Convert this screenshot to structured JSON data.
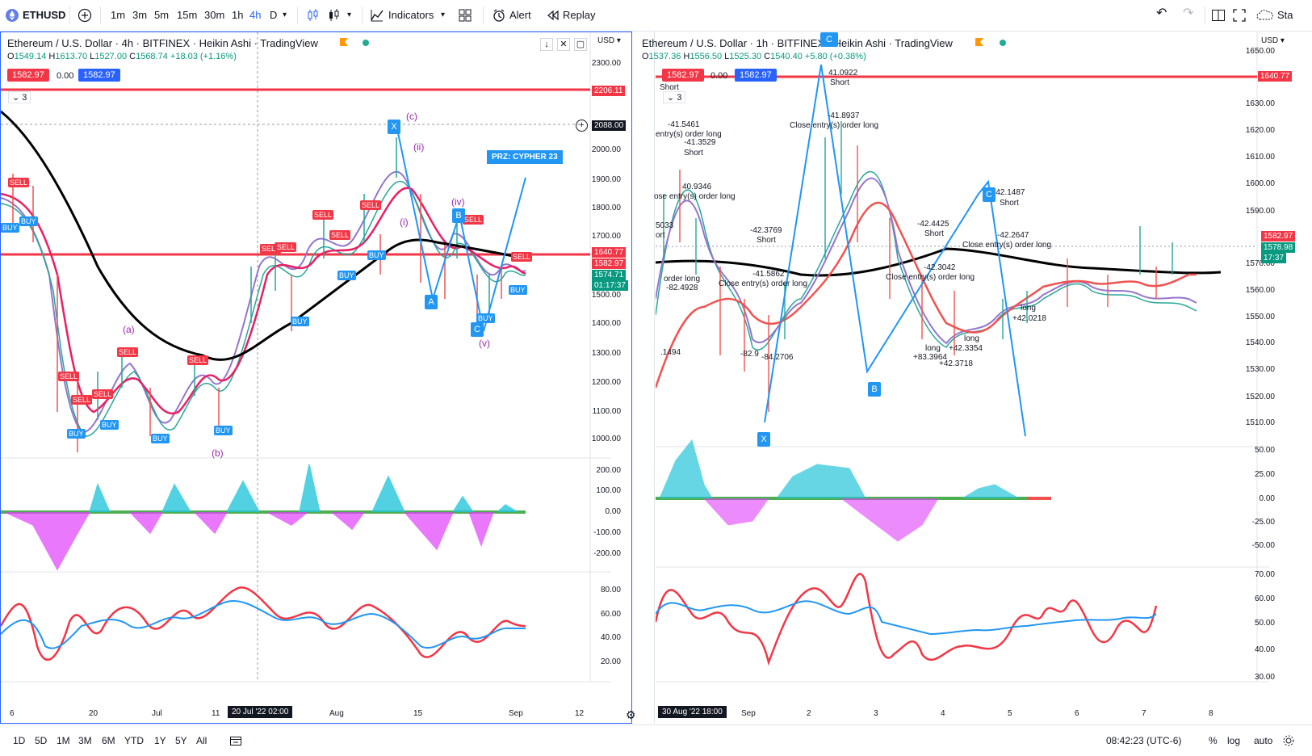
{
  "toolbar": {
    "symbol": "ETHUSD",
    "intervals": [
      "1m",
      "3m",
      "5m",
      "15m",
      "30m",
      "1h",
      "4h",
      "D"
    ],
    "active_interval": "4h",
    "indicators": "Indicators",
    "alert": "Alert",
    "replay": "Replay",
    "right_cut": "Sta"
  },
  "left": {
    "title": "Ethereum / U.S. Dollar · 4h · BITFINEX · Heikin Ashi · TradingView",
    "ohlc": {
      "o_k": "O",
      "o": "1549.14",
      "h_k": "H",
      "h": "1613.70",
      "l_k": "L",
      "l": "1527.00",
      "c_k": "C",
      "c": "1568.74",
      "chg": "+18.03 (+1.16%)"
    },
    "bid": "1582.97",
    "spread": "0.00",
    "ask": "1582.97",
    "collapse": "3",
    "currency": "USD",
    "price_labels": [
      "2300.00",
      "2200.00",
      "2100.00",
      "2000.00",
      "1900.00",
      "1800.00",
      "1700.00",
      "1600.00",
      "1500.00",
      "1400.00",
      "1300.00",
      "1200.00",
      "1100.00",
      "1000.00"
    ],
    "tags": {
      "red_line": "2206.11",
      "crosshair": "2088.00",
      "level": "1640.77",
      "last": "1582.97",
      "cur": "1574.71",
      "timer": "01:17:37"
    },
    "osc1_labels": [
      "200.00",
      "100.00",
      "0.00",
      "-100.00",
      "-200.00"
    ],
    "osc2_labels": [
      "80.00",
      "60.00",
      "40.00",
      "20.00"
    ],
    "x_labels": [
      "6",
      "20",
      "Jul",
      "11",
      "Aug",
      "15",
      "Sep",
      "12"
    ],
    "x_tag": "20 Jul '22   02:00",
    "waves": [
      "(a)",
      "(b)",
      "(c)",
      "(i)",
      "(ii)",
      "(iv)",
      "(v)"
    ],
    "prz": "PRZ: CYPHER 23",
    "signals": {
      "buy": "BUY",
      "sell": "SELL"
    },
    "points": [
      "B",
      "A",
      "C",
      "X"
    ]
  },
  "right": {
    "title": "Ethereum / U.S. Dollar · 1h · BITFINEX · Heikin Ashi · TradingView",
    "ohlc": {
      "o_k": "O",
      "o": "1537.36",
      "h_k": "H",
      "h": "1556.50",
      "l_k": "L",
      "l": "1525.30",
      "c_k": "C",
      "c": "1540.40",
      "chg": "+5.80 (+0.38%)"
    },
    "bid": "1582.97",
    "spread": "0.00",
    "ask": "1582.97",
    "collapse": "3",
    "currency": "USD",
    "price_labels": [
      "1650.00",
      "1630.00",
      "1620.00",
      "1610.00",
      "1600.00",
      "1590.00",
      "1570.00",
      "1560.00",
      "1550.00",
      "1540.00",
      "1530.00",
      "1520.00",
      "1510.00"
    ],
    "tags": {
      "level": "1640.77",
      "last": "1582.97",
      "cur": "1578.98",
      "timer": "17:37"
    },
    "osc1_labels": [
      "50.00",
      "25.00",
      "0.00",
      "-25.00",
      "-50.00"
    ],
    "osc2_labels": [
      "70.00",
      "60.00",
      "50.00",
      "40.00",
      "30.00"
    ],
    "x_labels": [
      "Sep",
      "2",
      "3",
      "4",
      "5",
      "6",
      "7",
      "8"
    ],
    "x_tag": "30 Aug '22   18:00",
    "annotations": {
      "a1": "41.0922",
      "a2": "Short",
      "a3": "-41.5461",
      "a4": "entry(s) order long",
      "a5": "-41.3529",
      "a6": "Short",
      "a7": "40.9346",
      "a8": "ose entry(s) order long",
      "a9": "-41.8937",
      "a10": "Close entry(s) order long",
      "a11": "-42.3769",
      "a12": "Short",
      "a13": "-42.4425",
      "a14": "Short",
      "a15": "-42.1487",
      "a16": "Short",
      "a17": "-42.2647",
      "a18": "Close entry(s) order long",
      "a19": "-42.3042",
      "a20": "Close entry(s) order long",
      "a21": "-41.5862",
      "a22": "Close entry(s) order long",
      "a23": "order long",
      "a24": "-82.4928",
      "a25": "long",
      "a26": "+42.0218",
      "a27": "long",
      "a28": "+42.3354",
      "a29": "+83.3964",
      "a30": "+42.3718",
      "a31": "long",
      "a32": ".1494",
      "a33": "-82.9",
      "a34": "-84.2706",
      "a35": "5033",
      "a36": "ort",
      "a37": "Short"
    },
    "points": [
      "X",
      "B",
      "C",
      "C"
    ]
  },
  "bottom": {
    "ranges": [
      "1D",
      "5D",
      "1M",
      "3M",
      "6M",
      "YTD",
      "1Y",
      "5Y",
      "All"
    ],
    "clock": "08:42:23 (UTC-6)",
    "pct": "%",
    "log": "log",
    "auto": "auto"
  },
  "colors": {
    "red": "#f23645",
    "blue": "#2196f3",
    "teal": "#26c6da",
    "magenta": "#e040fb",
    "black": "#000000",
    "accent": "#2962ff"
  }
}
